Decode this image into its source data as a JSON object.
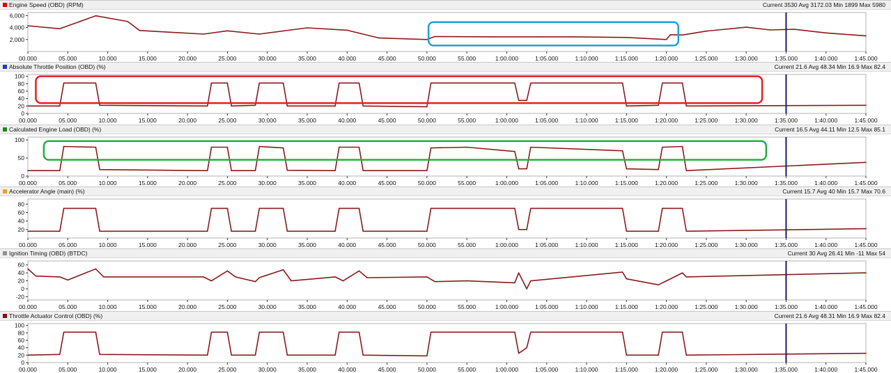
{
  "chart_data": [
    {
      "type": "line",
      "title": "Engine Speed (OBD) (RPM)",
      "stats": "Current 3530 Avg 3172.03 Min 1899 Max 5980",
      "color": "#8b1a1a",
      "swatch": "#e00000",
      "ylim": [
        0,
        6500
      ],
      "yticks": [
        2000,
        4000,
        6000
      ],
      "ytick_labels": [
        "2,000",
        "4,000",
        "6,000"
      ],
      "x": [
        0,
        4,
        8.5,
        12.5,
        14,
        22,
        25,
        29,
        35,
        40,
        44,
        50,
        51,
        58,
        64,
        68,
        75,
        80,
        80.5,
        82,
        85,
        90,
        93,
        96,
        100,
        105
      ],
      "values": [
        4300,
        3800,
        5950,
        5000,
        3500,
        2900,
        3450,
        2900,
        3950,
        3550,
        2250,
        2000,
        2500,
        2450,
        2450,
        2450,
        2350,
        2000,
        2800,
        2750,
        3400,
        4050,
        3600,
        3700,
        3100,
        2600
      ]
    },
    {
      "type": "line",
      "title": "Absolute Throttle Position (OBD) (%)",
      "stats": "Current 21.6 Avg 48.34 Min 16.9 Max 82.4",
      "color": "#8b1a1a",
      "swatch": "#1a3ccc",
      "ylim": [
        0,
        105
      ],
      "yticks": [
        0,
        20,
        40,
        60,
        80,
        100
      ],
      "ytick_labels": [
        "0",
        "20",
        "40",
        "60",
        "80",
        "100"
      ],
      "x": [
        0,
        4,
        4.5,
        8.5,
        9,
        22.5,
        23,
        25,
        25.5,
        28.5,
        29,
        32,
        32.5,
        38.5,
        39,
        41.5,
        42,
        50,
        50.5,
        61,
        61.5,
        62.5,
        63,
        74.5,
        75,
        79,
        79.5,
        82,
        82.5,
        105
      ],
      "values": [
        20,
        20,
        82,
        82,
        22,
        20,
        82,
        82,
        20,
        22,
        82,
        82,
        20,
        20,
        82,
        82,
        20,
        18,
        82,
        82,
        35,
        35,
        82,
        82,
        20,
        22,
        82,
        82,
        20,
        22
      ]
    },
    {
      "type": "line",
      "title": "Calculated Engine Load (OBD) (%)",
      "stats": "Current 16.5 Avg 44.11 Min 12.5 Max 85.1",
      "color": "#8b1a1a",
      "swatch": "#1a8a1a",
      "ylim": [
        0,
        108
      ],
      "yticks": [
        0,
        50,
        100
      ],
      "ytick_labels": [
        "0",
        "50",
        "100"
      ],
      "x": [
        0,
        4,
        4.5,
        8.5,
        9,
        22.5,
        23,
        25,
        25.5,
        28.5,
        29,
        32,
        32.5,
        38.5,
        39,
        41.5,
        42,
        50,
        50.5,
        55,
        61,
        61.5,
        62.5,
        63,
        74.5,
        75,
        79,
        79.5,
        82,
        82.5,
        105
      ],
      "values": [
        15,
        15,
        82,
        80,
        18,
        15,
        80,
        80,
        15,
        15,
        82,
        78,
        16,
        15,
        80,
        80,
        15,
        15,
        78,
        80,
        68,
        20,
        20,
        80,
        70,
        20,
        18,
        80,
        82,
        15,
        38
      ]
    },
    {
      "type": "line",
      "title": "Accelerator Angle (main) (%)",
      "stats": "Current 15.7 Avg 40 Min 15.7 Max 70.6",
      "color": "#8b1a1a",
      "swatch": "#f0a020",
      "ylim": [
        0,
        92
      ],
      "yticks": [
        20,
        40,
        60,
        80
      ],
      "ytick_labels": [
        "20",
        "40",
        "60",
        "80"
      ],
      "x": [
        0,
        4,
        4.5,
        8.5,
        9,
        22.5,
        23,
        25,
        25.5,
        28.5,
        29,
        32,
        32.5,
        38.5,
        39,
        41.5,
        42,
        50,
        50.5,
        61,
        61.5,
        62.5,
        63,
        74.5,
        75,
        79,
        79.5,
        82,
        82.5,
        105
      ],
      "values": [
        16,
        16,
        70,
        70,
        16,
        16,
        70,
        70,
        16,
        16,
        70,
        70,
        16,
        16,
        70,
        70,
        16,
        16,
        70,
        70,
        20,
        20,
        70,
        70,
        16,
        16,
        70,
        70,
        16,
        22
      ]
    },
    {
      "type": "line",
      "title": "Ignition Timing (OBD) (BTDC)",
      "stats": "Current 30 Avg 26.41 Min -11 Max 54",
      "color": "#8b1a1a",
      "swatch": "#909090",
      "ylim": [
        -28,
        70
      ],
      "yticks": [
        -20,
        0,
        20,
        40,
        60
      ],
      "ytick_labels": [
        "-20",
        "0",
        "20",
        "40",
        "60"
      ],
      "x": [
        0,
        1,
        4,
        5,
        8.5,
        9.5,
        22,
        23,
        25,
        26,
        28.5,
        29,
        32,
        33,
        38.5,
        39.5,
        41.5,
        42.5,
        50,
        51,
        55,
        61,
        61.5,
        62.5,
        63,
        74.5,
        75,
        79,
        80,
        82,
        82.5,
        105
      ],
      "values": [
        50,
        32,
        30,
        22,
        50,
        30,
        30,
        20,
        45,
        30,
        18,
        28,
        48,
        20,
        30,
        20,
        45,
        28,
        30,
        18,
        20,
        15,
        40,
        0,
        20,
        42,
        25,
        10,
        20,
        40,
        30,
        40
      ]
    },
    {
      "type": "line",
      "title": "Throttle Actuator Control (OBD) (%)",
      "stats": "Current 21.6 Avg 48.31 Min 16.9 Max 82.4",
      "color": "#8b1a1a",
      "swatch": "#8b1010",
      "ylim": [
        0,
        105
      ],
      "yticks": [
        0,
        20,
        40,
        60,
        80,
        100
      ],
      "ytick_labels": [
        "0",
        "20",
        "40",
        "60",
        "80",
        "100"
      ],
      "x": [
        0,
        4,
        4.5,
        8.5,
        9,
        22.5,
        23,
        25,
        25.5,
        28.5,
        29,
        32,
        32.5,
        38.5,
        39,
        41.5,
        42,
        50,
        50.5,
        61,
        61.5,
        62.5,
        63,
        74.5,
        75,
        79,
        79.5,
        82,
        82.5,
        105
      ],
      "values": [
        20,
        22,
        82,
        82,
        22,
        20,
        82,
        82,
        20,
        20,
        82,
        82,
        20,
        20,
        82,
        82,
        20,
        18,
        82,
        82,
        25,
        40,
        82,
        82,
        20,
        20,
        82,
        82,
        20,
        25
      ]
    }
  ],
  "x_axis": {
    "ticks": [
      0,
      5,
      10,
      15,
      20,
      25,
      30,
      35,
      40,
      45,
      50,
      55,
      60,
      65,
      70,
      75,
      80,
      85,
      90,
      95,
      100,
      105
    ],
    "tick_labels": [
      "00.000",
      "05.000",
      "10.000",
      "15.000",
      "20.000",
      "25.000",
      "30.000",
      "35.000",
      "40.000",
      "45.000",
      "50.000",
      "55.000",
      "1:00.000",
      "1:05.000",
      "1:10.000",
      "1:15.000",
      "1:20.000",
      "1:25.000",
      "1:30.000",
      "1:35.000",
      "1:40.000",
      "1:45.000"
    ],
    "cursor": 95,
    "cursor_color": "#1a1a6e"
  },
  "annotations": [
    {
      "panel": 0,
      "x_range": [
        50.2,
        81.5
      ],
      "y_range": [
        1000,
        4900
      ],
      "color": "#1aa0e0",
      "shape": "rounded-rect"
    },
    {
      "panel": 1,
      "x_range": [
        1,
        92
      ],
      "y_range": [
        28,
        100
      ],
      "color": "#e02020",
      "shape": "rounded-rect"
    },
    {
      "panel": 2,
      "x_range": [
        2,
        92.5
      ],
      "y_range": [
        45,
        97
      ],
      "color": "#20b040",
      "shape": "rounded-rect"
    }
  ]
}
